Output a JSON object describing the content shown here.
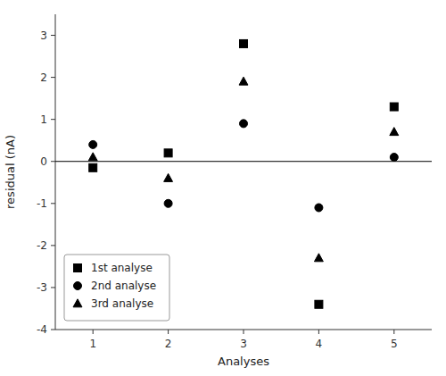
{
  "chart_data": {
    "type": "scatter",
    "x_label": "Analyses",
    "y_label": "residual (nA)",
    "x": [
      1,
      2,
      3,
      4,
      5
    ],
    "series": [
      {
        "name": "1st analyse",
        "marker": "square",
        "values": [
          -0.15,
          0.2,
          2.8,
          -3.4,
          1.3
        ]
      },
      {
        "name": "2nd analyse",
        "marker": "circle",
        "values": [
          0.4,
          -1.0,
          0.9,
          -1.1,
          0.1
        ]
      },
      {
        "name": "3rd analyse",
        "marker": "triangle",
        "values": [
          0.1,
          -0.4,
          1.9,
          -2.3,
          0.7
        ]
      }
    ],
    "color": "black",
    "xlim": [
      0.5,
      5.5
    ],
    "ylim": [
      -4,
      3.5
    ],
    "xticks": [
      1,
      2,
      3,
      4,
      5
    ],
    "yticks": [
      -4,
      -3,
      -2,
      -1,
      0,
      1,
      2,
      3
    ],
    "legend": "lower left",
    "grid": false
  }
}
